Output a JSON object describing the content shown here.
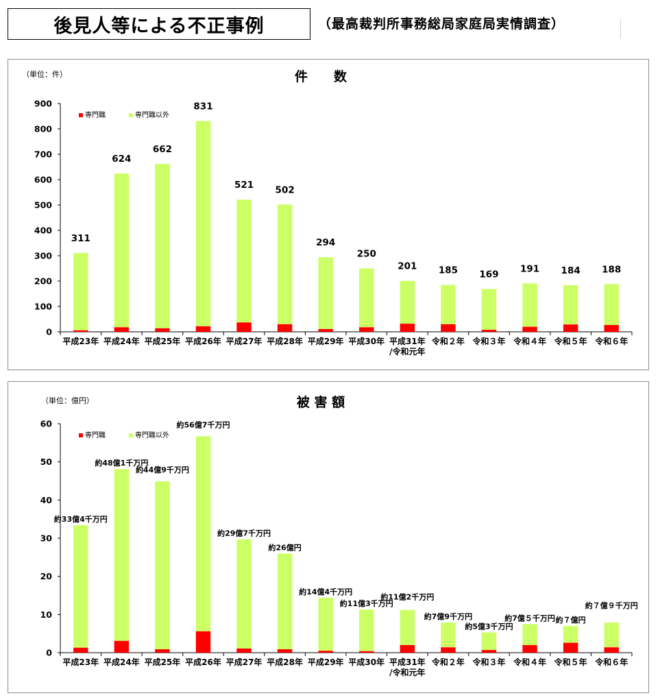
{
  "header": {
    "title": "後見人等による不正事例",
    "source": "（最高裁判所事務総局家庭局実情調査）"
  },
  "colors": {
    "professional": "#ff0000",
    "non_professional": "#ccff66"
  },
  "chart_data": [
    {
      "type": "bar",
      "stacked": true,
      "title": "件　　数",
      "unit": "（単位：件）",
      "ylim": [
        0,
        900
      ],
      "yticks": [
        0,
        100,
        200,
        300,
        400,
        500,
        600,
        700,
        800,
        900
      ],
      "legend_position": "top-left",
      "categories": [
        "平成23年",
        "平成24年",
        "平成25年",
        "平成26年",
        "平成27年",
        "平成28年",
        "平成29年",
        "平成30年",
        [
          "平成31年",
          "/令和元年"
        ],
        "令和２年",
        "令和３年",
        "令和４年",
        "令和５年",
        "令和６年"
      ],
      "series": [
        {
          "name": "専門職",
          "values": [
            6,
            18,
            14,
            22,
            37,
            30,
            11,
            18,
            32,
            30,
            8,
            20,
            29,
            27
          ]
        },
        {
          "name": "専門職以外",
          "values": [
            305,
            606,
            648,
            809,
            484,
            472,
            283,
            232,
            169,
            155,
            161,
            171,
            155,
            161
          ]
        }
      ],
      "totals": [
        311,
        624,
        662,
        831,
        521,
        502,
        294,
        250,
        201,
        185,
        169,
        191,
        184,
        188
      ],
      "data_labels": [
        "311",
        "624",
        "662",
        "831",
        "521",
        "502",
        "294",
        "250",
        "201",
        "185",
        "169",
        "191",
        "184",
        "188"
      ]
    },
    {
      "type": "bar",
      "stacked": true,
      "title": "被 害 額",
      "unit": "（単位：億円）",
      "ylim": [
        0,
        60
      ],
      "yticks": [
        0,
        10,
        20,
        30,
        40,
        50,
        60
      ],
      "legend_position": "top-left",
      "categories": [
        "平成23年",
        "平成24年",
        "平成25年",
        "平成26年",
        "平成27年",
        "平成28年",
        "平成29年",
        "平成30年",
        [
          "平成31年",
          "/令和元年"
        ],
        "令和２年",
        "令和３年",
        "令和４年",
        "令和５年",
        "令和６年"
      ],
      "series": [
        {
          "name": "専門職",
          "values": [
            1.3,
            3.1,
            0.9,
            5.6,
            1.1,
            0.9,
            0.5,
            0.4,
            2.0,
            1.4,
            0.7,
            2.0,
            2.6,
            1.4
          ]
        },
        {
          "name": "専門職以外",
          "values": [
            32.1,
            45.0,
            44.0,
            51.1,
            28.6,
            25.1,
            13.9,
            10.9,
            9.2,
            6.5,
            4.6,
            5.5,
            4.4,
            6.5
          ]
        }
      ],
      "totals": [
        33.4,
        48.1,
        44.9,
        56.7,
        29.7,
        26.0,
        14.4,
        11.3,
        11.2,
        7.9,
        5.3,
        7.5,
        7.0,
        7.9
      ],
      "data_labels": [
        "約33億4千万円",
        "約48億1千万円",
        "約44億9千万円",
        "約56億7千万円",
        "約29億7千万円",
        "約26億円",
        "約14億4千万円",
        "約11億3千万円",
        "約11億2千万円",
        "約7億9千万円",
        "約5億3千万円",
        "約7億５千万円",
        "約７億円",
        "約７億９千万円"
      ]
    }
  ]
}
